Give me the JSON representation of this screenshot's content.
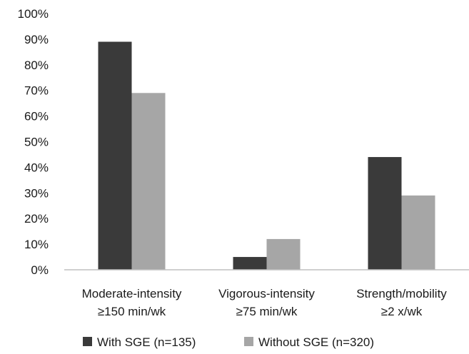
{
  "chart_data": {
    "type": "bar",
    "categories": [
      [
        "Moderate-intensity",
        "≥150 min/wk"
      ],
      [
        "Vigorous-intensity",
        "≥75 min/wk"
      ],
      [
        "Strength/mobility",
        "≥2 x/wk"
      ]
    ],
    "series": [
      {
        "name": "With SGE (n=135)",
        "values": [
          89,
          5,
          44
        ],
        "color": "#3a3a3a"
      },
      {
        "name": "Without SGE (n=320)",
        "values": [
          69,
          12,
          29
        ],
        "color": "#a6a6a6"
      }
    ],
    "ylim": [
      0,
      100
    ],
    "y_ticks": [
      0,
      10,
      20,
      30,
      40,
      50,
      60,
      70,
      80,
      90,
      100
    ],
    "y_tick_labels": [
      "0%",
      "10%",
      "20%",
      "30%",
      "40%",
      "50%",
      "60%",
      "70%",
      "80%",
      "90%",
      "100%"
    ],
    "grid": false,
    "legend_position": "bottom",
    "axis_color": "#bfbfbf"
  }
}
